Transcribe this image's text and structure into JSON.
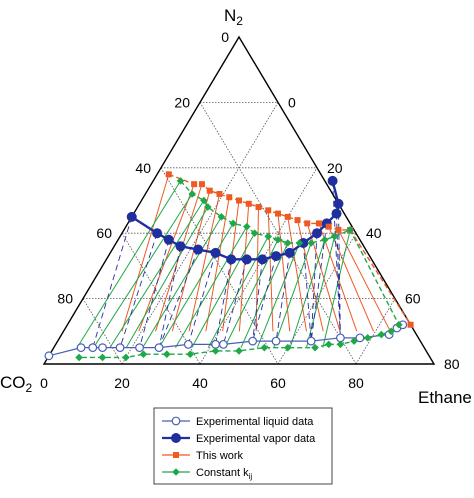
{
  "chart_data": {
    "type": "ternary",
    "title": "",
    "corner_labels": {
      "top": {
        "base": "N",
        "sub": "2"
      },
      "left": {
        "base": "CO",
        "sub": "2"
      },
      "right": "Ethane"
    },
    "grid": true,
    "grid_step": 20,
    "bottom_ticks": [
      "0",
      "20",
      "40",
      "60",
      "80"
    ],
    "left_ticks": [
      "0",
      "20",
      "40",
      "60",
      "80"
    ],
    "right_ticks": [
      "80",
      "60",
      "40",
      "20",
      "0"
    ],
    "legend_position": "bottom-center",
    "legend": [
      {
        "key": "liquid",
        "label": "Experimental liquid data"
      },
      {
        "key": "vapor",
        "label": "Experimental vapor data"
      },
      {
        "key": "this_work",
        "label": "This work"
      },
      {
        "key": "kij",
        "label_base": "Constant k",
        "label_sub": "ij"
      }
    ],
    "colors": {
      "liquid": "#4a5fb4",
      "vapor": "#1f2f9e",
      "this_work": "#ee5a24",
      "kij": "#1fa848"
    },
    "series": [
      {
        "key": "liquid",
        "components": [
          "N2",
          "Ethane"
        ],
        "points": [
          [
            2.5,
            0
          ],
          [
            5,
            7
          ],
          [
            5,
            10
          ],
          [
            5,
            12.5
          ],
          [
            5,
            17
          ],
          [
            5,
            22
          ],
          [
            5,
            27
          ],
          [
            6,
            34
          ],
          [
            6,
            41
          ],
          [
            6,
            43
          ],
          [
            7,
            50
          ],
          [
            7,
            56
          ],
          [
            7,
            65
          ],
          [
            8,
            72
          ],
          [
            8,
            77
          ],
          [
            9,
            84
          ],
          [
            11,
            85
          ],
          [
            12,
            86
          ]
        ]
      },
      {
        "key": "vapor",
        "components": [
          "N2",
          "Ethane"
        ],
        "points": [
          [
            45,
            0
          ],
          [
            40,
            9
          ],
          [
            38,
            13
          ],
          [
            36,
            17
          ],
          [
            35,
            22
          ],
          [
            34,
            27
          ],
          [
            32,
            32
          ],
          [
            32,
            36
          ],
          [
            32,
            40
          ],
          [
            33,
            43
          ],
          [
            34,
            46
          ],
          [
            37,
            48
          ],
          [
            40,
            50
          ],
          [
            43,
            51
          ],
          [
            46,
            52
          ],
          [
            49,
            51
          ],
          [
            56,
            46
          ]
        ]
      },
      {
        "key": "this_work",
        "components": [
          "N2",
          "Ethane"
        ],
        "points": [
          [
            58,
            3
          ],
          [
            55,
            11
          ],
          [
            55,
            13
          ],
          [
            53,
            16
          ],
          [
            52,
            19
          ],
          [
            51,
            22
          ],
          [
            50,
            25
          ],
          [
            49,
            28
          ],
          [
            48,
            31
          ],
          [
            47,
            34
          ],
          [
            46,
            37
          ],
          [
            45,
            40
          ],
          [
            44,
            43
          ],
          [
            43,
            46
          ],
          [
            43,
            49
          ],
          [
            42,
            52
          ],
          [
            41,
            55
          ],
          [
            41,
            58
          ],
          [
            12,
            88
          ]
        ]
      },
      {
        "key": "kij",
        "components": [
          "N2",
          "Ethane"
        ],
        "points": [
          [
            56,
            7
          ],
          [
            52,
            12
          ],
          [
            50,
            16
          ],
          [
            48,
            18
          ],
          [
            45,
            23
          ],
          [
            43,
            27
          ],
          [
            42,
            31
          ],
          [
            40,
            34
          ],
          [
            39,
            38
          ],
          [
            38,
            41
          ],
          [
            37,
            44
          ],
          [
            37,
            47
          ],
          [
            37,
            50
          ],
          [
            38,
            53
          ],
          [
            39,
            55
          ],
          [
            41,
            58
          ],
          [
            12,
            85
          ],
          [
            10,
            84
          ],
          [
            9,
            82
          ],
          [
            8,
            79
          ],
          [
            7,
            76
          ],
          [
            6,
            73
          ],
          [
            6,
            70
          ],
          [
            5,
            67
          ],
          [
            5,
            60
          ],
          [
            5,
            54
          ],
          [
            4,
            48
          ],
          [
            4,
            42
          ],
          [
            3,
            36
          ],
          [
            3,
            30
          ],
          [
            3,
            24
          ],
          [
            2,
            20
          ],
          [
            2,
            14
          ],
          [
            2,
            8
          ]
        ]
      }
    ]
  }
}
